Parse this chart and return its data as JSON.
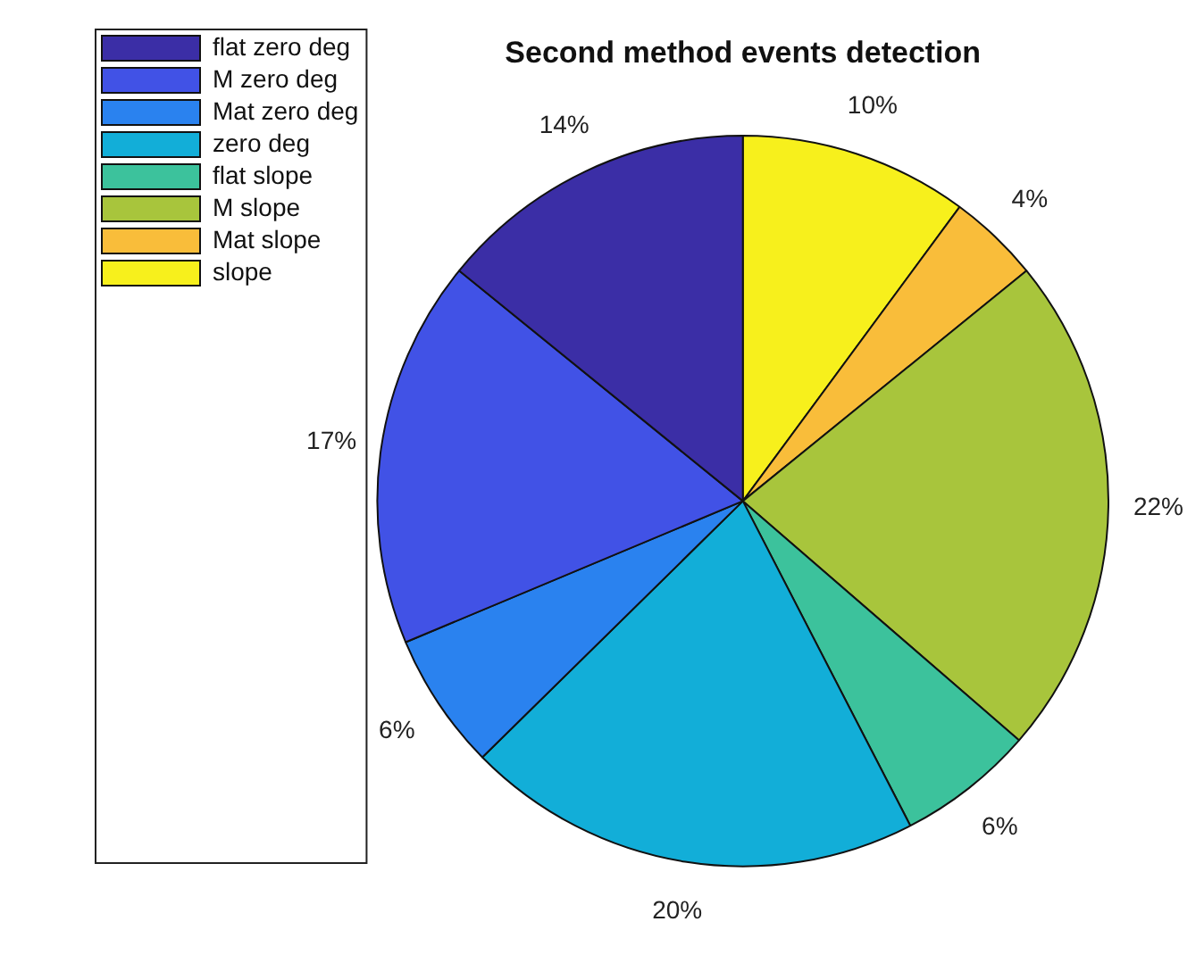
{
  "chart_data": {
    "type": "pie",
    "title": "Second method events detection",
    "categories": [
      "flat zero deg",
      "M zero deg",
      "Mat zero deg",
      "zero deg",
      "flat slope",
      "M slope",
      "Mat slope",
      "slope"
    ],
    "values": [
      14,
      17,
      6,
      20,
      6,
      22,
      4,
      10
    ],
    "value_labels": [
      "14%",
      "17%",
      "6%",
      "20%",
      "6%",
      "22%",
      "4%",
      "10%"
    ],
    "colors": [
      "#3b2ea6",
      "#4152e6",
      "#2a82ef",
      "#12aed8",
      "#3cc29c",
      "#a8c53c",
      "#f9bd3a",
      "#f7f01c"
    ],
    "legend": "top left"
  }
}
